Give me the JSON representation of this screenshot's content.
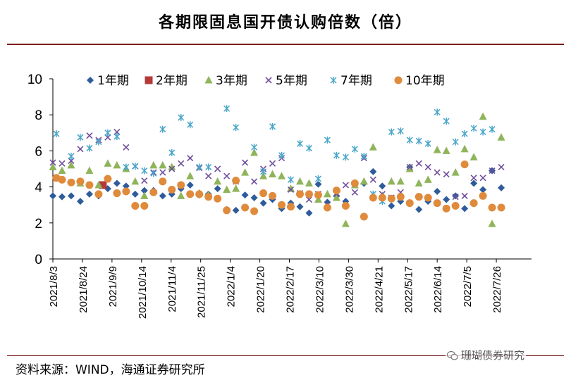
{
  "chart_data": {
    "type": "scatter",
    "title": "各期限固息国开债认购倍数（倍）",
    "xlabel": "",
    "ylabel": "",
    "ylim": [
      0,
      10
    ],
    "yticks": [
      0,
      2,
      4,
      6,
      8,
      10
    ],
    "xlim": [
      0,
      68
    ],
    "xtick_labels": [
      "2021/8/3",
      "2021/8/24",
      "2021/9/9",
      "2021/10/14",
      "2021/11/4",
      "2021/11/25",
      "2022/1/4",
      "2022/1/20",
      "2022/2/17",
      "2022/3/10",
      "2022/3/30",
      "2022/4/21",
      "2022/5/17",
      "2022/6/14",
      "2022/7/5",
      "2022/7/26"
    ],
    "xtick_positions": [
      0,
      4.2,
      8.4,
      12.6,
      16.8,
      21,
      25.2,
      29.4,
      33.6,
      37.8,
      42,
      46.2,
      50.4,
      54.6,
      58.8,
      63
    ],
    "legend": [
      "1年期",
      "2年期",
      "3年期",
      "5年期",
      "7年期",
      "10年期"
    ],
    "series": [
      {
        "name": "1年期",
        "color": "#2e5c9a",
        "marker": "diamond",
        "points": [
          [
            0,
            3.5
          ],
          [
            1.3,
            3.45
          ],
          [
            2.6,
            3.5
          ],
          [
            3.9,
            3.2
          ],
          [
            5.2,
            3.6
          ],
          [
            6.5,
            3.5
          ],
          [
            7.8,
            3.9
          ],
          [
            9.1,
            4.2
          ],
          [
            10.4,
            4.05
          ],
          [
            11.7,
            3.6
          ],
          [
            13,
            3.8
          ],
          [
            14.3,
            3.8
          ],
          [
            15.6,
            3.5
          ],
          [
            16.9,
            3.6
          ],
          [
            18.2,
            3.9
          ],
          [
            19.5,
            4.1
          ],
          [
            20.8,
            3.55
          ],
          [
            22.1,
            3.6
          ],
          [
            23.4,
            3.9
          ],
          [
            24.7,
            2.75
          ],
          [
            26,
            2.7
          ],
          [
            27.3,
            3.55
          ],
          [
            28.6,
            3.4
          ],
          [
            29.9,
            3.1
          ],
          [
            31.2,
            3.3
          ],
          [
            32.5,
            2.8
          ],
          [
            33.8,
            3.1
          ],
          [
            35.1,
            2.9
          ],
          [
            36.4,
            2.55
          ],
          [
            37.7,
            4.15
          ],
          [
            39,
            3.15
          ],
          [
            40.3,
            3.5
          ],
          [
            41.6,
            3.2
          ],
          [
            42.9,
            4.1
          ],
          [
            44.2,
            4.2
          ],
          [
            45.5,
            4.85
          ],
          [
            46.8,
            4.05
          ],
          [
            48.1,
            2.95
          ],
          [
            49.4,
            3.2
          ],
          [
            50.7,
            5.1
          ],
          [
            52,
            2.75
          ],
          [
            53.3,
            3.2
          ],
          [
            54.6,
            3.75
          ],
          [
            55.9,
            3.3
          ],
          [
            57.2,
            3.5
          ],
          [
            58.5,
            2.8
          ],
          [
            59.8,
            4.2
          ],
          [
            61.1,
            3.85
          ],
          [
            62.4,
            4.9
          ],
          [
            63.7,
            3.95
          ]
        ]
      },
      {
        "name": "2年期",
        "color": "#b23a37",
        "marker": "square",
        "points": [
          [
            7.1,
            4.1
          ]
        ]
      },
      {
        "name": "3年期",
        "color": "#8fb45a",
        "marker": "triangle",
        "points": [
          [
            0,
            5.1
          ],
          [
            1.3,
            4.9
          ],
          [
            2.6,
            5.2
          ],
          [
            3.9,
            4.2
          ],
          [
            5.2,
            4.9
          ],
          [
            6.5,
            4.1
          ],
          [
            7.8,
            5.3
          ],
          [
            9.1,
            5.2
          ],
          [
            10.4,
            5.0
          ],
          [
            11.7,
            4.3
          ],
          [
            13,
            3.5
          ],
          [
            14.3,
            5.2
          ],
          [
            15.6,
            5.2
          ],
          [
            16.9,
            5.1
          ],
          [
            18.2,
            3.5
          ],
          [
            19.5,
            4.6
          ],
          [
            20.8,
            3.65
          ],
          [
            22.1,
            3.55
          ],
          [
            23.4,
            4.3
          ],
          [
            24.7,
            3.85
          ],
          [
            26,
            3.9
          ],
          [
            27.3,
            4.8
          ],
          [
            28.6,
            5.9
          ],
          [
            29.9,
            4.6
          ],
          [
            31.2,
            4.7
          ],
          [
            32.5,
            4.6
          ],
          [
            33.8,
            3.9
          ],
          [
            35.1,
            4.3
          ],
          [
            36.4,
            4.2
          ],
          [
            37.7,
            3.3
          ],
          [
            39,
            3.6
          ],
          [
            40.3,
            3.4
          ],
          [
            41.6,
            1.95
          ],
          [
            42.9,
            4.1
          ],
          [
            44.2,
            4.3
          ],
          [
            45.5,
            6.2
          ],
          [
            46.8,
            3.5
          ],
          [
            48.1,
            4.3
          ],
          [
            49.4,
            4.3
          ],
          [
            50.7,
            5.0
          ],
          [
            52,
            4.2
          ],
          [
            53.3,
            4.4
          ],
          [
            54.6,
            6.05
          ],
          [
            55.9,
            6.0
          ],
          [
            57.2,
            4.8
          ],
          [
            58.5,
            6.1
          ],
          [
            59.8,
            5.65
          ],
          [
            61.1,
            7.9
          ],
          [
            62.4,
            1.95
          ],
          [
            63.7,
            6.75
          ]
        ]
      },
      {
        "name": "5年期",
        "color": "#6f4e9c",
        "marker": "x",
        "points": [
          [
            0,
            5.35
          ],
          [
            1.3,
            5.3
          ],
          [
            2.6,
            5.45
          ],
          [
            3.9,
            6.1
          ],
          [
            5.2,
            6.85
          ],
          [
            6.5,
            6.6
          ],
          [
            7.8,
            6.75
          ],
          [
            9.1,
            7.05
          ],
          [
            10.4,
            6.2
          ],
          [
            11.7,
            5.15
          ],
          [
            13,
            4.35
          ],
          [
            14.3,
            4.8
          ],
          [
            15.6,
            4.8
          ],
          [
            16.9,
            5.0
          ],
          [
            18.2,
            5.3
          ],
          [
            19.5,
            5.6
          ],
          [
            20.8,
            5.05
          ],
          [
            22.1,
            4.6
          ],
          [
            23.4,
            5.0
          ],
          [
            24.7,
            4.6
          ],
          [
            26,
            4.3
          ],
          [
            27.3,
            5.35
          ],
          [
            28.6,
            4.3
          ],
          [
            29.9,
            5.0
          ],
          [
            31.2,
            5.3
          ],
          [
            32.5,
            5.6
          ],
          [
            33.8,
            3.85
          ],
          [
            35.1,
            3.65
          ],
          [
            36.4,
            3.3
          ],
          [
            37.7,
            3.6
          ],
          [
            39,
            3.0
          ],
          [
            40.3,
            3.6
          ],
          [
            41.6,
            4.1
          ],
          [
            42.9,
            3.7
          ],
          [
            44.2,
            5.6
          ],
          [
            45.5,
            4.4
          ],
          [
            46.8,
            3.6
          ],
          [
            48.1,
            3.4
          ],
          [
            49.4,
            3.7
          ],
          [
            50.7,
            5.1
          ],
          [
            52,
            5.3
          ],
          [
            53.3,
            5.1
          ],
          [
            54.6,
            4.8
          ],
          [
            55.9,
            4.7
          ],
          [
            57.2,
            3.45
          ],
          [
            58.5,
            3.5
          ],
          [
            59.8,
            4.5
          ],
          [
            61.1,
            4.5
          ],
          [
            62.4,
            4.9
          ],
          [
            63.7,
            5.1
          ]
        ]
      },
      {
        "name": "7年期",
        "color": "#4aa6c9",
        "marker": "asterisk",
        "points": [
          [
            0.5,
            6.95
          ],
          [
            2.6,
            5.7
          ],
          [
            3.9,
            6.75
          ],
          [
            5.2,
            6.15
          ],
          [
            6.5,
            6.5
          ],
          [
            7.8,
            7.0
          ],
          [
            9.1,
            6.8
          ],
          [
            10.4,
            5.1
          ],
          [
            11.7,
            5.15
          ],
          [
            13,
            4.9
          ],
          [
            14.3,
            4.75
          ],
          [
            15.6,
            7.2
          ],
          [
            16.9,
            5.9
          ],
          [
            18.2,
            7.85
          ],
          [
            19.5,
            7.45
          ],
          [
            20.8,
            5.1
          ],
          [
            22.1,
            5.1
          ],
          [
            24.7,
            8.35
          ],
          [
            26,
            7.3
          ],
          [
            28.6,
            6.2
          ],
          [
            29.9,
            4.85
          ],
          [
            31.2,
            7.35
          ],
          [
            32.5,
            5.75
          ],
          [
            33.8,
            4.4
          ],
          [
            35.1,
            6.4
          ],
          [
            36.4,
            6.15
          ],
          [
            37.7,
            4.45
          ],
          [
            39,
            6.6
          ],
          [
            40.3,
            5.75
          ],
          [
            41.6,
            5.65
          ],
          [
            42.9,
            6.1
          ],
          [
            44.2,
            5.7
          ],
          [
            45.5,
            3.6
          ],
          [
            46.8,
            3.2
          ],
          [
            48.1,
            7.05
          ],
          [
            49.4,
            7.1
          ],
          [
            50.7,
            6.6
          ],
          [
            52,
            6.55
          ],
          [
            53.3,
            6.4
          ],
          [
            54.6,
            8.15
          ],
          [
            55.9,
            7.65
          ],
          [
            57.2,
            6.5
          ],
          [
            58.5,
            6.95
          ],
          [
            59.8,
            7.25
          ],
          [
            61.1,
            7.05
          ],
          [
            62.4,
            7.2
          ]
        ]
      },
      {
        "name": "10年期",
        "color": "#e08a3c",
        "marker": "circle",
        "points": [
          [
            0.5,
            4.5
          ],
          [
            1.3,
            4.4
          ],
          [
            2.6,
            4.25
          ],
          [
            3.9,
            4.3
          ],
          [
            5.2,
            4.1
          ],
          [
            6.5,
            3.6
          ],
          [
            7.8,
            4.45
          ],
          [
            9.1,
            3.65
          ],
          [
            10.4,
            3.75
          ],
          [
            11.7,
            2.95
          ],
          [
            13,
            2.95
          ],
          [
            14.3,
            3.7
          ],
          [
            15.6,
            4.3
          ],
          [
            16.9,
            3.85
          ],
          [
            18.2,
            4.1
          ],
          [
            19.5,
            3.6
          ],
          [
            20.8,
            3.6
          ],
          [
            22.1,
            3.45
          ],
          [
            23.4,
            3.35
          ],
          [
            24.7,
            2.7
          ],
          [
            26,
            4.35
          ],
          [
            27.3,
            2.85
          ],
          [
            28.6,
            2.65
          ],
          [
            29.9,
            3.65
          ],
          [
            31.2,
            3.5
          ],
          [
            32.5,
            3.0
          ],
          [
            33.8,
            2.9
          ],
          [
            35.1,
            3.6
          ],
          [
            36.4,
            3.6
          ],
          [
            37.7,
            3.55
          ],
          [
            39,
            2.85
          ],
          [
            40.3,
            3.8
          ],
          [
            41.6,
            2.95
          ],
          [
            42.9,
            4.2
          ],
          [
            44.2,
            2.35
          ],
          [
            45.5,
            3.4
          ],
          [
            46.8,
            3.4
          ],
          [
            48.1,
            3.35
          ],
          [
            49.4,
            3.45
          ],
          [
            50.7,
            3.1
          ],
          [
            52,
            3.45
          ],
          [
            53.3,
            3.4
          ],
          [
            54.6,
            3.1
          ],
          [
            55.9,
            2.8
          ],
          [
            57.2,
            2.95
          ],
          [
            58.5,
            5.25
          ],
          [
            59.8,
            3.1
          ],
          [
            61.1,
            3.5
          ],
          [
            62.4,
            2.85
          ],
          [
            63.7,
            2.85
          ]
        ]
      }
    ]
  },
  "source": "资料来源：WIND，海通证券研究所",
  "watermark": "珊瑚债券研究"
}
